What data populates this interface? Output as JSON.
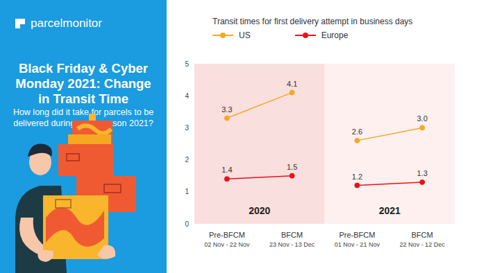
{
  "brand": "parcelmonitor",
  "chart_data": {
    "type": "line",
    "title": "Black Friday & Cyber Monday 2021: Change in Transit Time",
    "subtitle": "How long did it take for parcels to be delivered during peak season 2021?",
    "ylabel": "Transit times for first delivery attempt in business days",
    "categories": [
      "Pre-BFCM",
      "BFCM",
      "Pre-BFCM",
      "BFCM"
    ],
    "dates": [
      "02 Nov - 22 Nov",
      "23 Nov - 13 Dec",
      "01 Nov - 21 Nov",
      "22 Nov - 12 Dec"
    ],
    "period": [
      "2020",
      "2020",
      "2021",
      "2021"
    ],
    "series": [
      {
        "name": "US",
        "color": "#f7a823",
        "values": [
          3.3,
          4.1,
          2.6,
          3.0
        ],
        "value_labels": [
          "3.3",
          "4.1",
          "2.6",
          "3.0"
        ]
      },
      {
        "name": "Europe",
        "color": "#e8121c",
        "values": [
          1.4,
          1.5,
          1.2,
          1.3
        ],
        "value_labels": [
          "1.4",
          "1.5",
          "1.2",
          "1.3"
        ]
      }
    ],
    "ylim": [
      0,
      5
    ],
    "yticks": [
      0,
      1,
      2,
      3,
      4,
      5
    ],
    "grid": false,
    "data_labels": true,
    "marker": "circle"
  }
}
